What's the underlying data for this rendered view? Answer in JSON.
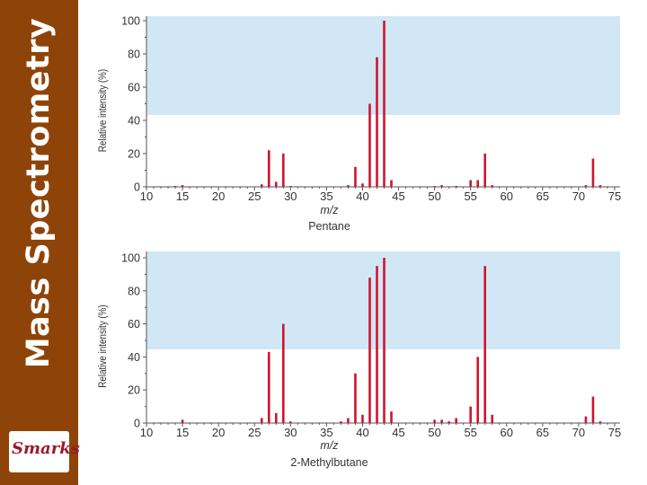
{
  "sidebar": {
    "title": "Mass Spectrometry",
    "logo_text": "Smarks",
    "background_color": "#8e4408"
  },
  "colors": {
    "bar": "#d0152e",
    "band": "#d2e7f6",
    "axis": "#555555",
    "text": "#333333"
  },
  "chart_data": [
    {
      "type": "bar",
      "title": "Pentane",
      "xlabel": "m/z",
      "ylabel": "Relative intensity (%)",
      "xlim": [
        10,
        75
      ],
      "ylim": [
        0,
        100
      ],
      "xticks": [
        10,
        15,
        20,
        25,
        30,
        35,
        40,
        45,
        50,
        55,
        60,
        65,
        70,
        75
      ],
      "yticks": [
        0,
        20,
        40,
        60,
        80,
        100
      ],
      "x": [
        14,
        15,
        26,
        27,
        28,
        29,
        30,
        38,
        39,
        40,
        41,
        42,
        43,
        44,
        50,
        51,
        53,
        55,
        56,
        57,
        58,
        71,
        72,
        73
      ],
      "values": [
        0.5,
        1,
        1.5,
        22,
        3,
        20,
        0.5,
        1,
        12,
        2,
        50,
        78,
        100,
        4,
        0.5,
        1,
        0.5,
        4,
        4,
        20,
        1,
        1,
        17,
        1
      ]
    },
    {
      "type": "bar",
      "title": "2-Methylbutane",
      "xlabel": "m/z",
      "ylabel": "Relative intensity (%)",
      "xlim": [
        10,
        75
      ],
      "ylim": [
        0,
        100
      ],
      "xticks": [
        10,
        15,
        20,
        25,
        30,
        35,
        40,
        45,
        50,
        55,
        60,
        65,
        70,
        75
      ],
      "yticks": [
        0,
        20,
        40,
        60,
        80,
        100
      ],
      "x": [
        15,
        26,
        27,
        28,
        29,
        30,
        37,
        38,
        39,
        40,
        41,
        42,
        43,
        44,
        50,
        51,
        52,
        53,
        55,
        56,
        57,
        58,
        71,
        72,
        73
      ],
      "values": [
        2,
        3,
        43,
        6,
        60,
        1,
        1,
        3,
        30,
        5,
        88,
        95,
        100,
        7,
        2,
        2,
        1,
        3,
        10,
        40,
        95,
        5,
        4,
        16,
        1
      ]
    }
  ]
}
